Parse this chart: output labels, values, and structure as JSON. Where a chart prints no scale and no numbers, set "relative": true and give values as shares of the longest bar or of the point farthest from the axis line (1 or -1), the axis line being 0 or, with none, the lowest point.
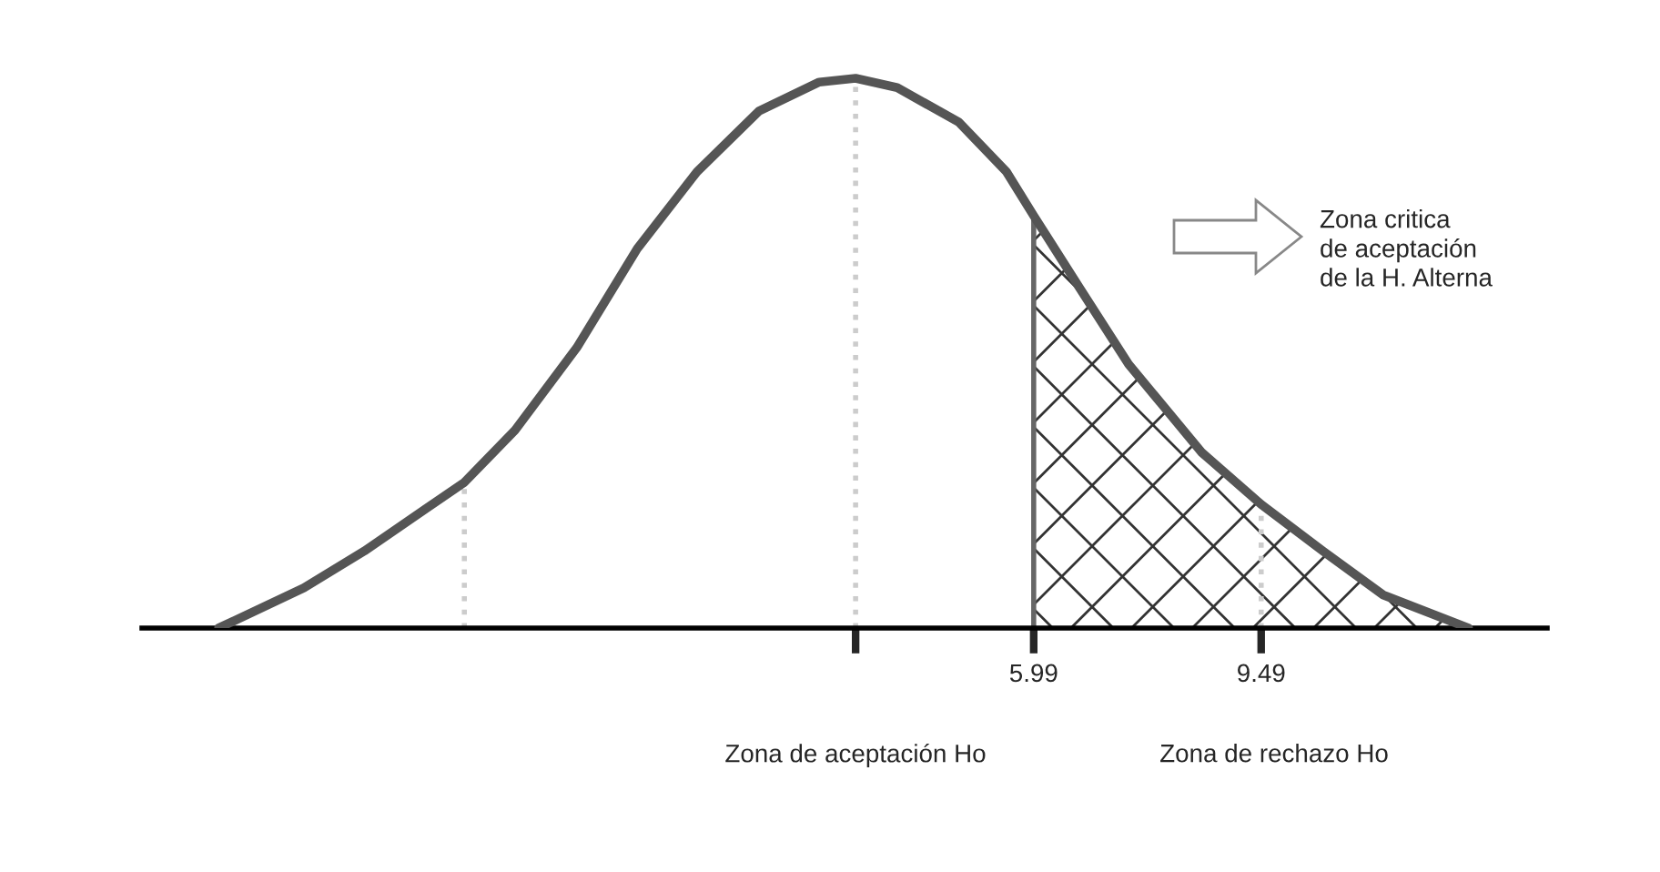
{
  "chart_data": {
    "type": "line",
    "relative": true,
    "x": [
      -6.55,
      -5.24,
      -4.31,
      -3.39,
      -2.77,
      -1.99,
      -1.04,
      -0.11,
      0.81,
      1.76,
      2.69,
      3.25,
      3.89,
      4.84,
      5.57,
      5.99,
      6.69,
      7.45,
      8.57,
      9.49,
      10.44,
      11.37,
      12.68
    ],
    "series": [
      {
        "color": "#555555",
        "values": [
          0,
          0.073,
          0.14,
          0.215,
          0.265,
          0.36,
          0.51,
          0.69,
          0.83,
          0.94,
          0.993,
          1,
          0.983,
          0.92,
          0.83,
          0.75,
          0.62,
          0.48,
          0.32,
          0.225,
          0.14,
          0.06,
          0
        ]
      },
      {
        "type": "area",
        "color": "#333333",
        "x": [
          5.99,
          6.69,
          7.45,
          8.57,
          9.49,
          10.44,
          11.37,
          12.68
        ],
        "values": [
          0.75,
          0.62,
          0.48,
          0.32,
          0.225,
          0.14,
          0.06,
          0
        ]
      }
    ],
    "xlim": [
      -7.73,
      13.89
    ],
    "xticks": [
      {
        "value": 3.25,
        "label": null
      },
      5.99,
      9.49
    ],
    "ref_lines": [
      {
        "axis": "x",
        "value": -2.77,
        "color": "#cccccc",
        "line_style": "dotted"
      },
      {
        "axis": "x",
        "value": 3.25,
        "color": "#cccccc",
        "line_style": "dotted"
      },
      {
        "axis": "x",
        "value": 9.49,
        "color": "#cccccc",
        "line_style": "dotted"
      },
      {
        "axis": "x",
        "value": 5.99,
        "color": "#666666",
        "line_style": "solid"
      }
    ],
    "annotations": [
      "Zona critica\nde aceptación\nde la H. Alterna",
      "Zona de aceptación Ho",
      "Zona de rechazo Ho"
    ],
    "marker": "none",
    "line_style": "solid",
    "grid": false,
    "legend": false
  }
}
